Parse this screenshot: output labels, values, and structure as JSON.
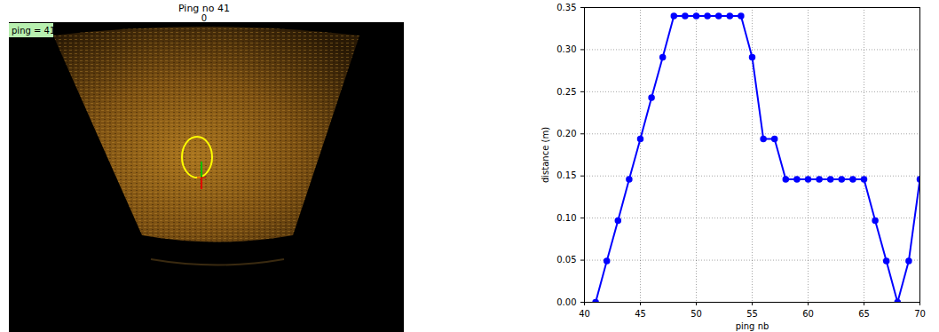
{
  "chart_data": [
    {
      "type": "image",
      "title": "Ping no 41",
      "annotations": [
        "0",
        "ping = 41"
      ]
    },
    {
      "type": "line",
      "x": [
        41,
        42,
        43,
        44,
        45,
        46,
        47,
        48,
        49,
        50,
        51,
        52,
        53,
        54,
        55,
        56,
        57,
        58,
        59,
        60,
        61,
        62,
        63,
        64,
        65,
        66,
        67,
        68,
        69,
        70
      ],
      "values": [
        0,
        0.049,
        0.097,
        0.146,
        0.194,
        0.243,
        0.291,
        0.34,
        0.34,
        0.34,
        0.34,
        0.34,
        0.34,
        0.34,
        0.291,
        0.194,
        0.194,
        0.146,
        0.146,
        0.146,
        0.146,
        0.146,
        0.146,
        0.146,
        0.146,
        0.097,
        0.049,
        0,
        0.049,
        0.146
      ],
      "xlabel": "ping nb",
      "ylabel": "distance (m)",
      "xlim": [
        40,
        70
      ],
      "ylim": [
        0,
        0.35
      ],
      "xticks": [
        40,
        45,
        50,
        55,
        60,
        65,
        70
      ],
      "yticks": [
        0,
        0.05,
        0.1,
        0.15,
        0.2,
        0.25,
        0.3,
        0.35
      ],
      "grid": true,
      "color": "#0000ff",
      "marker": "circle",
      "line_style": "solid"
    }
  ]
}
